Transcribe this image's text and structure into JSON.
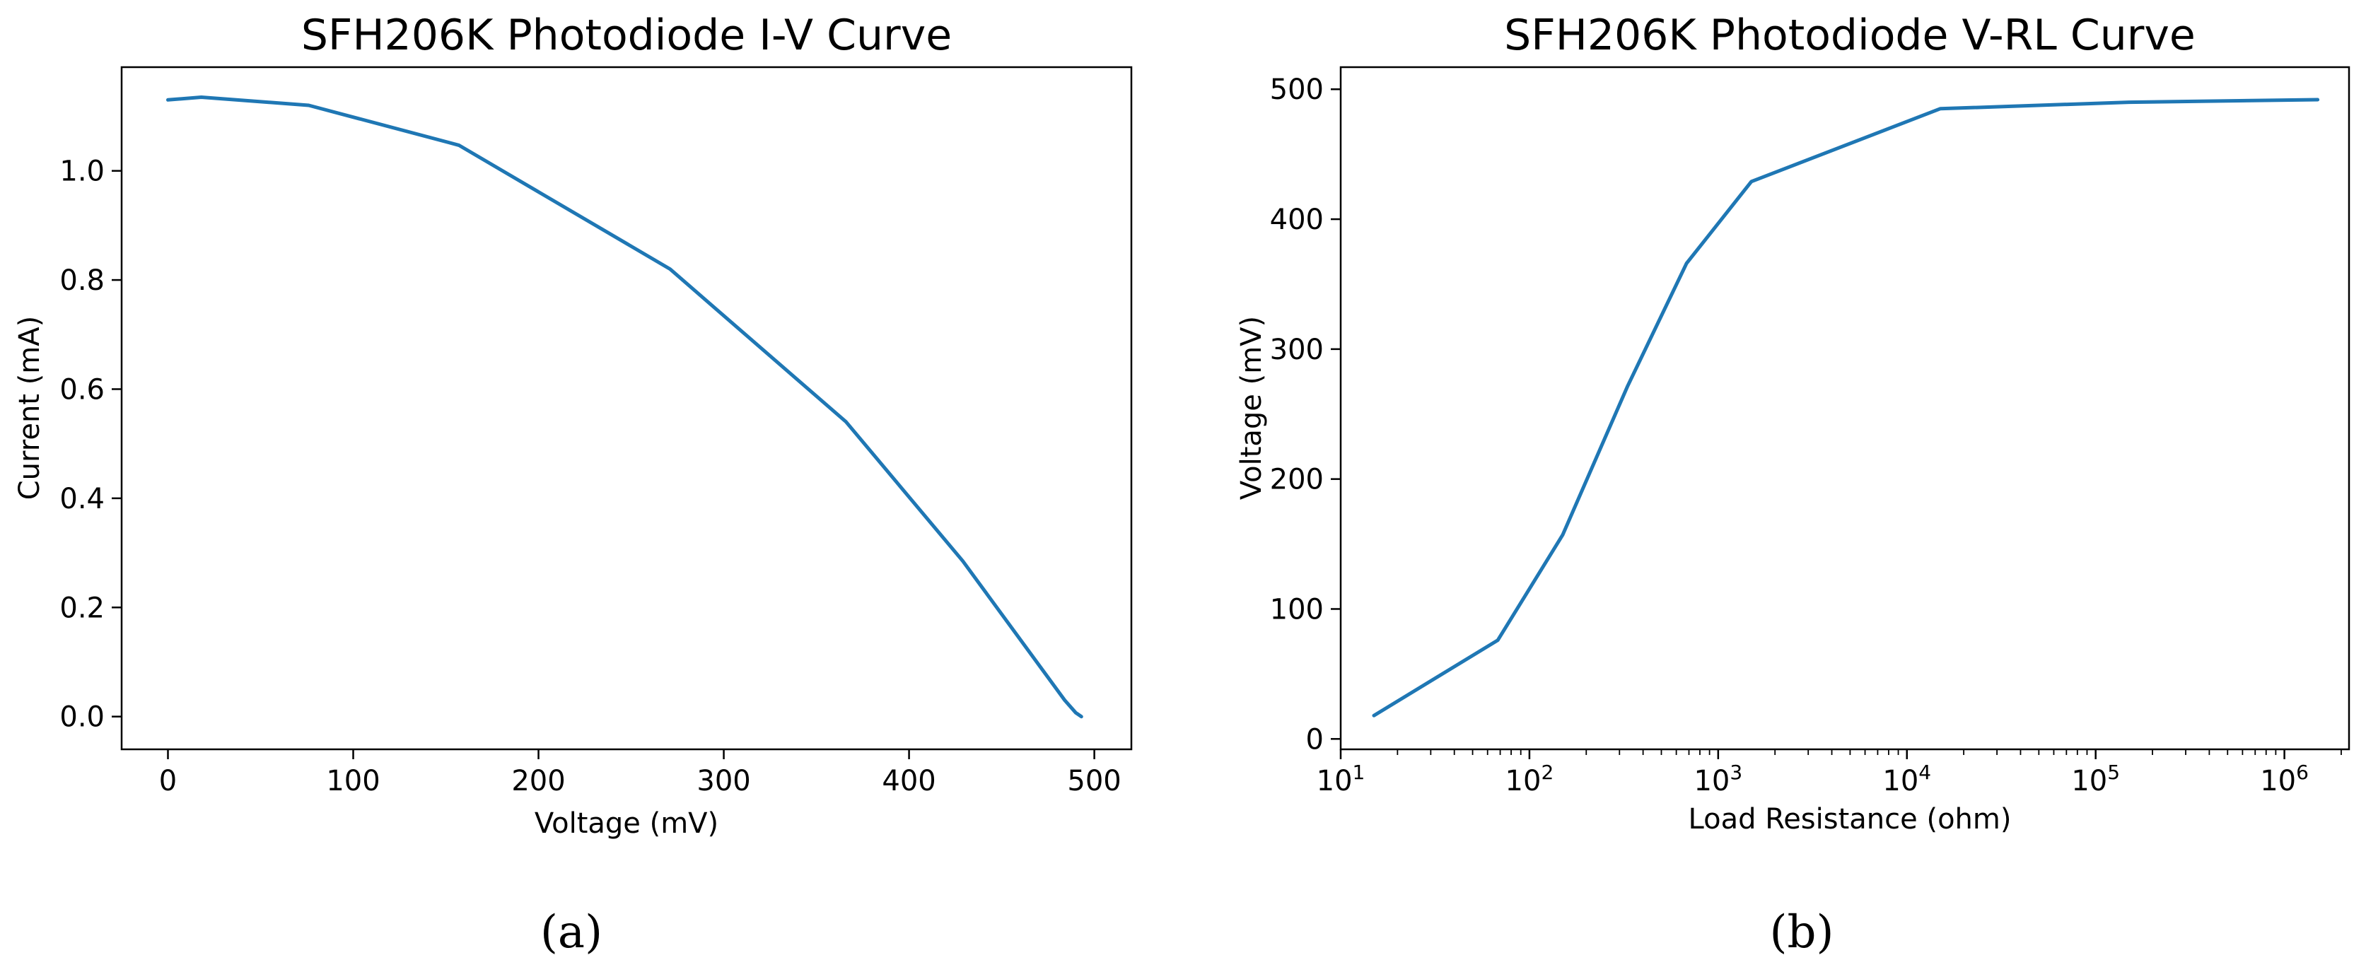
{
  "figure": {
    "panel_labels": [
      "(a)",
      "(b)"
    ]
  },
  "chart_data": [
    {
      "type": "line",
      "title": "SFH206K Photodiode I-V Curve",
      "xlabel": "Voltage (mV)",
      "ylabel": "Current (mA)",
      "xscale": "linear",
      "xlim": [
        -25,
        520
      ],
      "ylim": [
        -0.06,
        1.19
      ],
      "xticks": [
        0,
        100,
        200,
        300,
        400,
        500
      ],
      "xtick_labels": [
        "0",
        "100",
        "200",
        "300",
        "400",
        "500"
      ],
      "yticks": [
        0.0,
        0.2,
        0.4,
        0.6,
        0.8,
        1.0
      ],
      "ytick_labels": [
        "0.0",
        "0.2",
        "0.4",
        "0.6",
        "0.8",
        "1.0"
      ],
      "grid": false,
      "series": [
        {
          "name": "I-V",
          "color": "#1f77b4",
          "x": [
            0,
            18,
            76,
            157,
            271,
            366,
            429,
            484,
            490,
            493
          ],
          "y": [
            1.13,
            1.135,
            1.12,
            1.047,
            0.82,
            0.54,
            0.285,
            0.03,
            0.007,
            0.0
          ]
        }
      ]
    },
    {
      "type": "line",
      "title": "SFH206K Photodiode V-RL Curve",
      "xlabel": "Load Resistance (ohm)",
      "ylabel": "Voltage (mV)",
      "xscale": "log",
      "xlim": [
        10,
        2200000
      ],
      "ylim": [
        -8,
        517
      ],
      "xticks": [
        10,
        100,
        1000,
        10000,
        100000,
        1000000
      ],
      "xtick_labels": [
        {
          "base": "10",
          "exp": "1"
        },
        {
          "base": "10",
          "exp": "2"
        },
        {
          "base": "10",
          "exp": "3"
        },
        {
          "base": "10",
          "exp": "4"
        },
        {
          "base": "10",
          "exp": "5"
        },
        {
          "base": "10",
          "exp": "6"
        }
      ],
      "yticks": [
        0,
        100,
        200,
        300,
        400,
        500
      ],
      "ytick_labels": [
        "0",
        "100",
        "200",
        "300",
        "400",
        "500"
      ],
      "grid": false,
      "series": [
        {
          "name": "V-RL",
          "color": "#1f77b4",
          "x": [
            15,
            68,
            150,
            330,
            680,
            1500,
            15000,
            150000,
            1500000
          ],
          "y": [
            18,
            76,
            157,
            271,
            366,
            429,
            485,
            490,
            492
          ]
        }
      ]
    }
  ]
}
